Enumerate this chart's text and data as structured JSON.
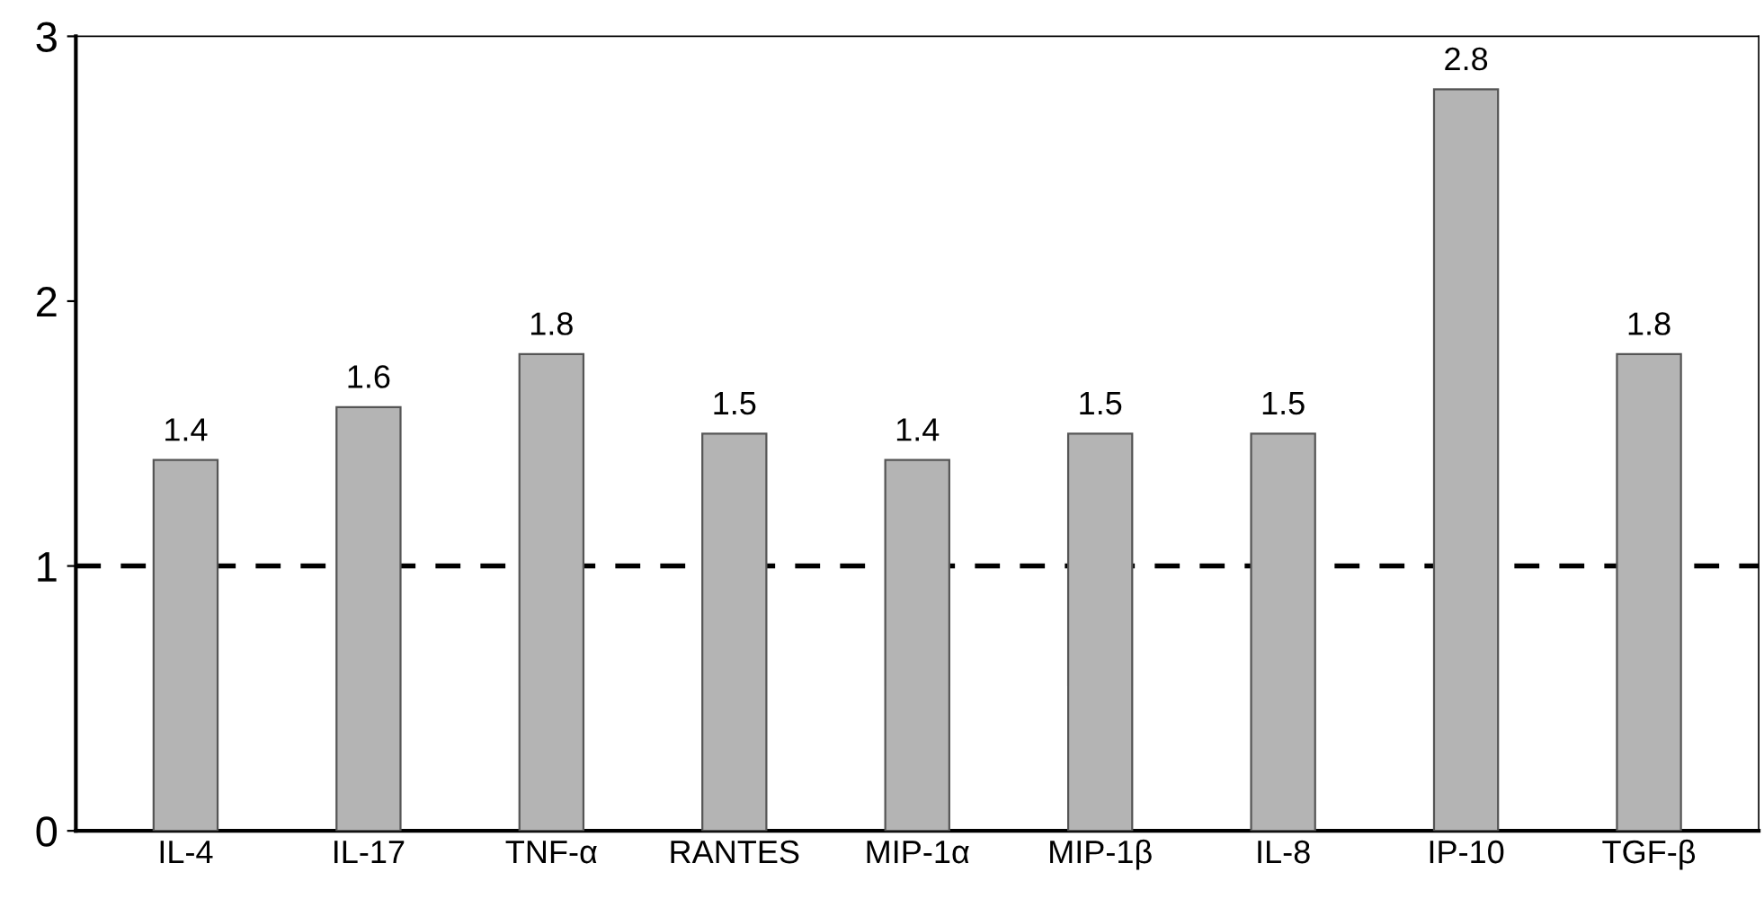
{
  "chart_data": {
    "type": "bar",
    "categories": [
      "IL-4",
      "IL-17",
      "TNF-α",
      "RANTES",
      "MIP-1α",
      "MIP-1β",
      "IL-8",
      "IP-10",
      "TGF-β"
    ],
    "values": [
      1.4,
      1.6,
      1.8,
      1.5,
      1.4,
      1.5,
      1.5,
      2.8,
      1.8
    ],
    "color": "#b4b4b4",
    "ylim": [
      0,
      3
    ],
    "yticks": [
      0,
      1,
      2,
      3
    ],
    "data_labels": true,
    "grid": false,
    "legend": false,
    "ref_lines": [
      {
        "axis": "y",
        "value": 1,
        "color": "#000000",
        "line_style": "dashed"
      }
    ]
  }
}
